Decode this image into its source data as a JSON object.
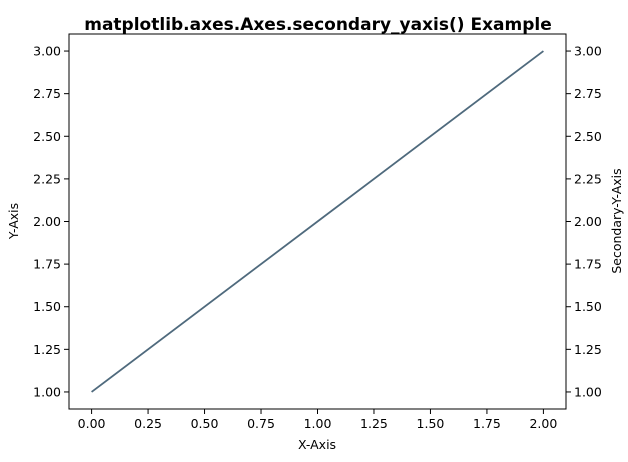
{
  "chart_data": {
    "type": "line",
    "title": "matplotlib.axes.Axes.secondary_yaxis() Example",
    "xlabel": "X-Axis",
    "ylabel": "Y-Axis",
    "secondary_ylabel": "Secondary-Y-Axis",
    "xlim": [
      -0.1,
      2.1
    ],
    "ylim": [
      0.9,
      3.1
    ],
    "secondary_ylim": [
      0.9,
      3.1
    ],
    "xticks": [
      0.0,
      0.25,
      0.5,
      0.75,
      1.0,
      1.25,
      1.5,
      1.75,
      2.0
    ],
    "xtick_labels": [
      "0.00",
      "0.25",
      "0.50",
      "0.75",
      "1.00",
      "1.25",
      "1.50",
      "1.75",
      "2.00"
    ],
    "yticks": [
      1.0,
      1.25,
      1.5,
      1.75,
      2.0,
      2.25,
      2.5,
      2.75,
      3.0
    ],
    "ytick_labels": [
      "1.00",
      "1.25",
      "1.50",
      "1.75",
      "2.00",
      "2.25",
      "2.50",
      "2.75",
      "3.00"
    ],
    "grid": false,
    "legend": false,
    "series": [
      {
        "x": [
          0,
          1,
          2
        ],
        "y": [
          1,
          2,
          3
        ],
        "color": "#4f6a7d"
      }
    ]
  }
}
